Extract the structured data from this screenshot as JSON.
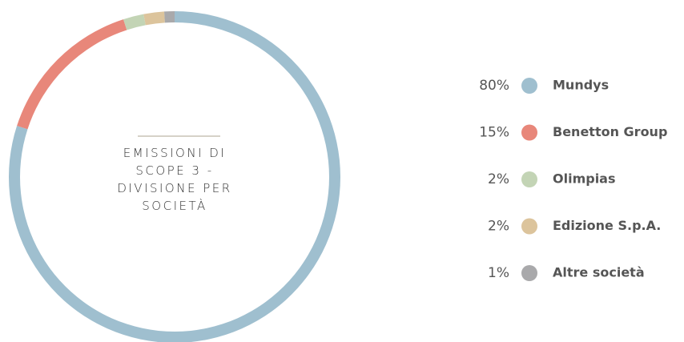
{
  "chart_data": {
    "type": "donut",
    "title": "EMISSIONI DI SCOPE 3 - DIVISIONE PER SOCIETÀ",
    "categories": [
      "Mundys",
      "Benetton Group",
      "Olimpias",
      "Edizione S.p.A.",
      "Altre società"
    ],
    "values": [
      80,
      15,
      2,
      2,
      1
    ],
    "value_labels": [
      "80%",
      "15%",
      "2%",
      "2%",
      "1%"
    ],
    "colors": [
      "#9fbfcf",
      "#e8877a",
      "#c3d4b5",
      "#dcc49c",
      "#a9a9ab"
    ]
  }
}
